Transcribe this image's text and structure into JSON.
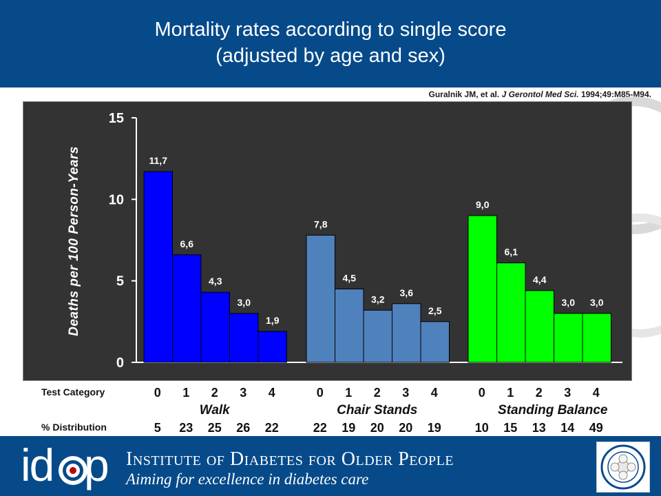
{
  "header": {
    "title_line1": "Mortality rates according to single score",
    "title_line2": "(adjusted by age and sex)"
  },
  "citation": {
    "authors": "Guralnik JM, et al.",
    "journal": "J Gerontol Med Sci.",
    "ref": "1994;49:M85-M94."
  },
  "chart_data": {
    "type": "bar",
    "ylabel": "Deaths per 100 Person-Years",
    "ylim": [
      0,
      15
    ],
    "yticks": [
      "0",
      "5",
      "10",
      "15"
    ],
    "groups": [
      {
        "name": "Walk",
        "color": "#0000ff",
        "categories": [
          "0",
          "1",
          "2",
          "3",
          "4"
        ],
        "values": [
          11.7,
          6.6,
          4.3,
          3.0,
          1.9
        ],
        "labels": [
          "11,7",
          "6,6",
          "4,3",
          "3,0",
          "1,9"
        ],
        "distribution": [
          "5",
          "23",
          "25",
          "26",
          "22"
        ]
      },
      {
        "name": "Chair Stands",
        "color": "#4f81bd",
        "categories": [
          "0",
          "1",
          "2",
          "3",
          "4"
        ],
        "values": [
          7.8,
          4.5,
          3.2,
          3.6,
          2.5
        ],
        "labels": [
          "7,8",
          "4,5",
          "3,2",
          "3,6",
          "2,5"
        ],
        "distribution": [
          "22",
          "19",
          "20",
          "20",
          "19"
        ]
      },
      {
        "name": "Standing Balance",
        "color": "#00ff00",
        "categories": [
          "0",
          "1",
          "2",
          "3",
          "4"
        ],
        "values": [
          9.0,
          6.1,
          4.4,
          3.0,
          3.0
        ],
        "labels": [
          "9,0",
          "6,1",
          "4,4",
          "3,0",
          "3,0"
        ],
        "distribution": [
          "10",
          "15",
          "13",
          "14",
          "49"
        ]
      }
    ]
  },
  "rows": {
    "test_category": "Test Category",
    "distribution": "% Distribution"
  },
  "footer": {
    "logo_id": "id",
    "logo_p": "p",
    "institute": "Institute of Diabetes for Older People",
    "tagline": "Aiming for excellence in diabetes care"
  },
  "colors": {
    "header_bg": "#064a8a",
    "plot_bg": "#333333"
  }
}
